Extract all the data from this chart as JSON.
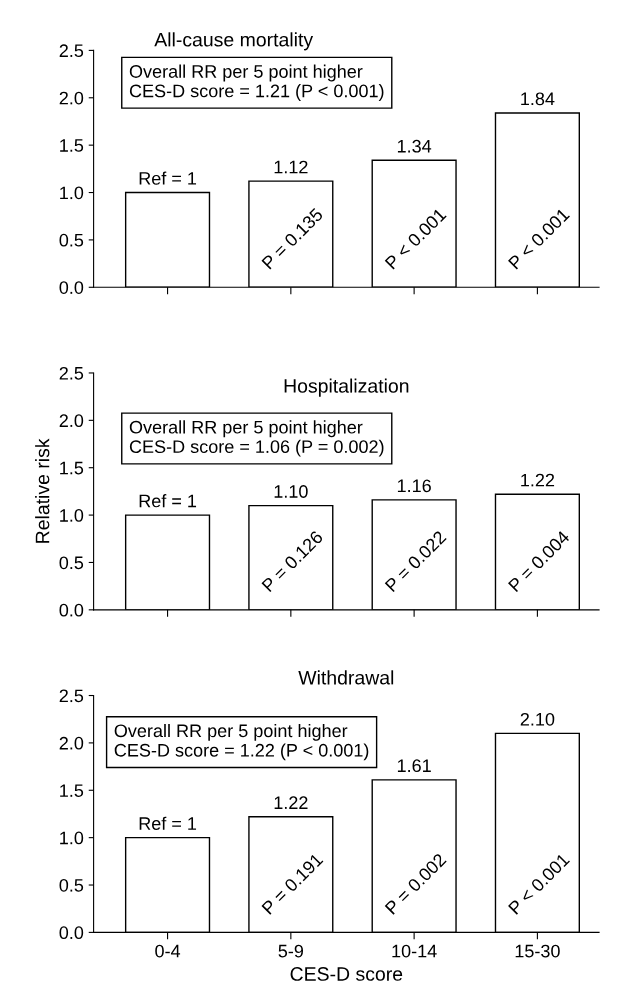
{
  "chart_data": [
    {
      "type": "bar",
      "title": "All-cause mortality",
      "categories": [
        null,
        null,
        null,
        null
      ],
      "values": [
        1,
        1.12,
        1.34,
        1.84
      ],
      "color": "#ffffff",
      "value_labels": [
        "Ref = 1",
        "1.12",
        "1.34",
        "1.84"
      ],
      "ylim": [
        0,
        2.5
      ],
      "yticks": [
        "0.0",
        "0.5",
        "1.0",
        "1.5",
        "2.0",
        "2.5"
      ],
      "tick_labels": "y",
      "grid": false,
      "legend": false,
      "annotations": [
        "Overall RR per 5 point higher\nCES-D score = 1.21 (P < 0.001)",
        "P = 0.135",
        "P < 0.001",
        "P < 0.001"
      ]
    },
    {
      "type": "bar",
      "title": "Hospitalization",
      "ylabel": "Relative risk",
      "categories": [
        null,
        null,
        null,
        null
      ],
      "values": [
        1,
        1.1,
        1.16,
        1.22
      ],
      "color": "#ffffff",
      "value_labels": [
        "Ref = 1",
        "1.10",
        "1.16",
        "1.22"
      ],
      "ylim": [
        0,
        2.5
      ],
      "yticks": [
        "0.0",
        "0.5",
        "1.0",
        "1.5",
        "2.0",
        "2.5"
      ],
      "tick_labels": "y",
      "grid": false,
      "legend": false,
      "annotations": [
        "Overall RR per 5 point higher\nCES-D score = 1.06 (P = 0.002)",
        "P = 0.126",
        "P = 0.022",
        "P = 0.004"
      ]
    },
    {
      "type": "bar",
      "title": "Withdrawal",
      "xlabel": "CES-D score",
      "categories": [
        "0-4",
        "5-9",
        "10-14",
        "15-30"
      ],
      "values": [
        1,
        1.22,
        1.61,
        2.1
      ],
      "color": "#ffffff",
      "value_labels": [
        "Ref = 1",
        "1.22",
        "1.61",
        "2.10"
      ],
      "ylim": [
        0,
        2.5
      ],
      "yticks": [
        "0.0",
        "0.5",
        "1.0",
        "1.5",
        "2.0",
        "2.5"
      ],
      "grid": false,
      "legend": false,
      "annotations": [
        "Overall RR per 5 point higher\nCES-D score = 1.22 (P < 0.001)",
        "P = 0.191",
        "P = 0.002",
        "P < 0.001"
      ]
    }
  ]
}
